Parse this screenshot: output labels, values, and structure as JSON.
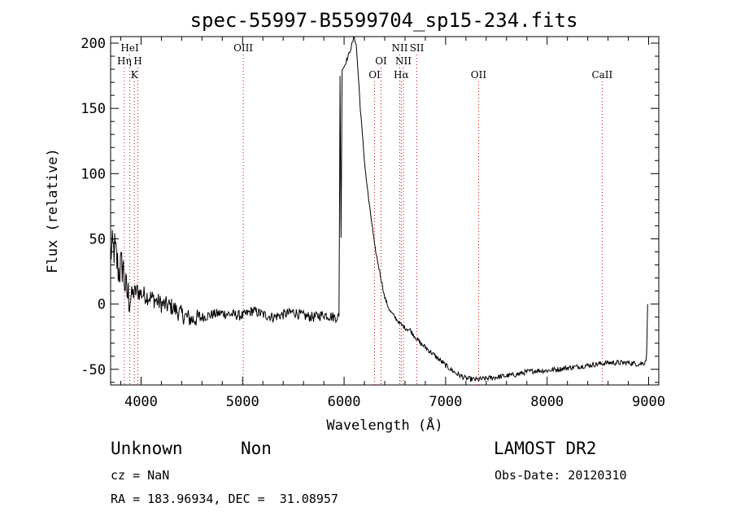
{
  "chart_data": {
    "type": "line",
    "title": "spec-55997-B5599704_sp15-234.fits",
    "xlabel": "Wavelength (Å)",
    "ylabel": "Flux (relative)",
    "xlim": [
      3700,
      9100
    ],
    "ylim": [
      -62,
      205
    ],
    "x_ticks": [
      4000,
      5000,
      6000,
      7000,
      8000,
      9000
    ],
    "y_ticks": [
      -50,
      0,
      50,
      100,
      150,
      200
    ],
    "grid": false,
    "line_color": "#000000",
    "series": [
      {
        "x": [
          3700,
          3740,
          3780,
          3820,
          3850,
          3880,
          3920,
          3960,
          4000,
          4100,
          4200,
          4300,
          4400,
          4500,
          4600,
          4700,
          4800,
          4900,
          5000,
          5100,
          5200,
          5300,
          5400,
          5500,
          5600,
          5700,
          5800,
          5900,
          5950,
          5960,
          5970,
          5980,
          6000,
          6050,
          6100,
          6120,
          6140,
          6160,
          6180,
          6200,
          6220,
          6250,
          6280,
          6300,
          6350,
          6400,
          6450,
          6500,
          6550,
          6600,
          6650,
          6700,
          6750,
          6800,
          6900,
          7000,
          7100,
          7200,
          7300,
          7400,
          7500,
          7600,
          7700,
          7800,
          7900,
          8000,
          8100,
          8200,
          8300,
          8400,
          8500,
          8600,
          8700,
          8800,
          8900,
          8960,
          8980,
          8990
        ],
        "y": [
          40,
          42,
          25,
          30,
          10,
          5,
          8,
          10,
          8,
          5,
          0,
          -2,
          -8,
          -12,
          -10,
          -8,
          -7,
          -8,
          -9,
          -5,
          -8,
          -10,
          -8,
          -6,
          -9,
          -10,
          -8,
          -10,
          -10,
          175,
          50,
          180,
          182,
          192,
          205,
          198,
          175,
          150,
          130,
          110,
          95,
          75,
          58,
          45,
          25,
          5,
          -5,
          -10,
          -15,
          -18,
          -20,
          -25,
          -30,
          -33,
          -40,
          -47,
          -53,
          -57,
          -58,
          -57,
          -56,
          -55,
          -54,
          -52,
          -51,
          -51,
          -50,
          -49,
          -48,
          -47,
          -46,
          -45,
          -45,
          -45,
          -46,
          -45,
          -40,
          0
        ]
      }
    ],
    "line_markers": [
      {
        "label": "HeI",
        "x": 3889,
        "row": 1
      },
      {
        "label": "Hη",
        "x": 3835,
        "row": 2
      },
      {
        "label": "H",
        "x": 3968,
        "row": 2
      },
      {
        "label": "K",
        "x": 3934,
        "row": 3
      },
      {
        "label": "OIII",
        "x": 5007,
        "row": 1
      },
      {
        "label": "OI",
        "x": 6364,
        "row": 2
      },
      {
        "label": "OI",
        "x": 6300,
        "row": 3
      },
      {
        "label": "NII",
        "x": 6548,
        "row": 1
      },
      {
        "label": "SII",
        "x": 6717,
        "row": 1
      },
      {
        "label": "NII",
        "x": 6584,
        "row": 2
      },
      {
        "label": "Hα",
        "x": 6563,
        "row": 3
      },
      {
        "label": "OII",
        "x": 7325,
        "row": 3
      },
      {
        "label": "CaII",
        "x": 8542,
        "row": 3
      }
    ]
  },
  "annotations": {
    "class_label": "Unknown",
    "subclass_label": "Non",
    "survey": "LAMOST DR2",
    "cz": "cz = NaN",
    "obs_date": "Obs-Date: 20120310",
    "coords": "RA = 183.96934, DEC =  31.08957"
  }
}
